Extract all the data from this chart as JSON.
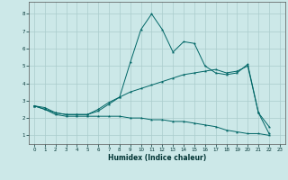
{
  "xlabel": "Humidex (Indice chaleur)",
  "background_color": "#cce8e8",
  "grid_color": "#aacccc",
  "line_color": "#006666",
  "xlim": [
    -0.5,
    23.5
  ],
  "ylim": [
    0.5,
    8.7
  ],
  "x_ticks": [
    0,
    1,
    2,
    3,
    4,
    5,
    6,
    7,
    8,
    9,
    10,
    11,
    12,
    13,
    14,
    15,
    16,
    17,
    18,
    19,
    20,
    21,
    22,
    23
  ],
  "y_ticks": [
    1,
    2,
    3,
    4,
    5,
    6,
    7,
    8
  ],
  "line1_x": [
    0,
    1,
    2,
    3,
    4,
    5,
    6,
    7,
    8,
    9,
    10,
    11,
    12,
    13,
    14,
    15,
    16,
    17,
    18,
    19,
    20,
    21,
    22
  ],
  "line1_y": [
    2.7,
    2.6,
    2.3,
    2.2,
    2.2,
    2.2,
    2.5,
    2.9,
    3.2,
    5.2,
    7.1,
    8.0,
    7.1,
    5.8,
    6.4,
    6.3,
    5.0,
    4.6,
    4.5,
    4.6,
    5.1,
    2.3,
    1.5
  ],
  "line2_x": [
    0,
    1,
    2,
    3,
    4,
    5,
    6,
    7,
    8,
    9,
    10,
    11,
    12,
    13,
    14,
    15,
    16,
    17,
    18,
    19,
    20,
    21,
    22
  ],
  "line2_y": [
    2.7,
    2.5,
    2.3,
    2.2,
    2.2,
    2.2,
    2.4,
    2.8,
    3.2,
    3.5,
    3.7,
    3.9,
    4.1,
    4.3,
    4.5,
    4.6,
    4.7,
    4.8,
    4.6,
    4.7,
    5.0,
    2.3,
    1.1
  ],
  "line3_x": [
    0,
    1,
    2,
    3,
    4,
    5,
    6,
    7,
    8,
    9,
    10,
    11,
    12,
    13,
    14,
    15,
    16,
    17,
    18,
    19,
    20,
    21,
    22
  ],
  "line3_y": [
    2.7,
    2.5,
    2.2,
    2.1,
    2.1,
    2.1,
    2.1,
    2.1,
    2.1,
    2.0,
    2.0,
    1.9,
    1.9,
    1.8,
    1.8,
    1.7,
    1.6,
    1.5,
    1.3,
    1.2,
    1.1,
    1.1,
    1.0
  ]
}
